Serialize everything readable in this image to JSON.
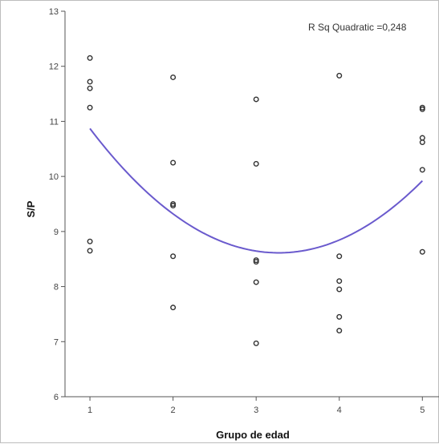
{
  "chart_data": {
    "type": "scatter",
    "title": "",
    "xlabel": "Grupo de edad",
    "ylabel": "S/P",
    "xlim": [
      0.7,
      5.2
    ],
    "ylim": [
      6,
      13
    ],
    "xticks": [
      1,
      2,
      3,
      4,
      5
    ],
    "yticks": [
      6,
      7,
      8,
      9,
      10,
      11,
      12,
      13
    ],
    "grid": false,
    "annotation": "R Sq Quadratic =0,248",
    "colors": {
      "fit": "#6a5acd",
      "points": "#333333",
      "axis": "#555555"
    },
    "points": [
      {
        "x": 1,
        "y": 12.15
      },
      {
        "x": 1,
        "y": 11.72
      },
      {
        "x": 1,
        "y": 11.6
      },
      {
        "x": 1,
        "y": 11.25
      },
      {
        "x": 1,
        "y": 8.82
      },
      {
        "x": 1,
        "y": 8.65
      },
      {
        "x": 2,
        "y": 11.8
      },
      {
        "x": 2,
        "y": 10.25
      },
      {
        "x": 2,
        "y": 9.5
      },
      {
        "x": 2,
        "y": 9.47
      },
      {
        "x": 2,
        "y": 8.55
      },
      {
        "x": 2,
        "y": 7.62
      },
      {
        "x": 3,
        "y": 11.4
      },
      {
        "x": 3,
        "y": 10.23
      },
      {
        "x": 3,
        "y": 8.48
      },
      {
        "x": 3,
        "y": 8.45
      },
      {
        "x": 3,
        "y": 8.08
      },
      {
        "x": 3,
        "y": 6.97
      },
      {
        "x": 4,
        "y": 11.83
      },
      {
        "x": 4,
        "y": 8.55
      },
      {
        "x": 4,
        "y": 8.1
      },
      {
        "x": 4,
        "y": 7.95
      },
      {
        "x": 4,
        "y": 7.45
      },
      {
        "x": 4,
        "y": 7.2
      },
      {
        "x": 5,
        "y": 11.25
      },
      {
        "x": 5,
        "y": 11.22
      },
      {
        "x": 5,
        "y": 10.7
      },
      {
        "x": 5,
        "y": 10.62
      },
      {
        "x": 5,
        "y": 10.12
      },
      {
        "x": 5,
        "y": 8.63
      }
    ],
    "fit": {
      "type": "quadratic",
      "x_range": [
        1,
        5
      ],
      "coefficients": {
        "a": 0.4375,
        "b": -2.8625,
        "c": 13.295
      }
    }
  }
}
